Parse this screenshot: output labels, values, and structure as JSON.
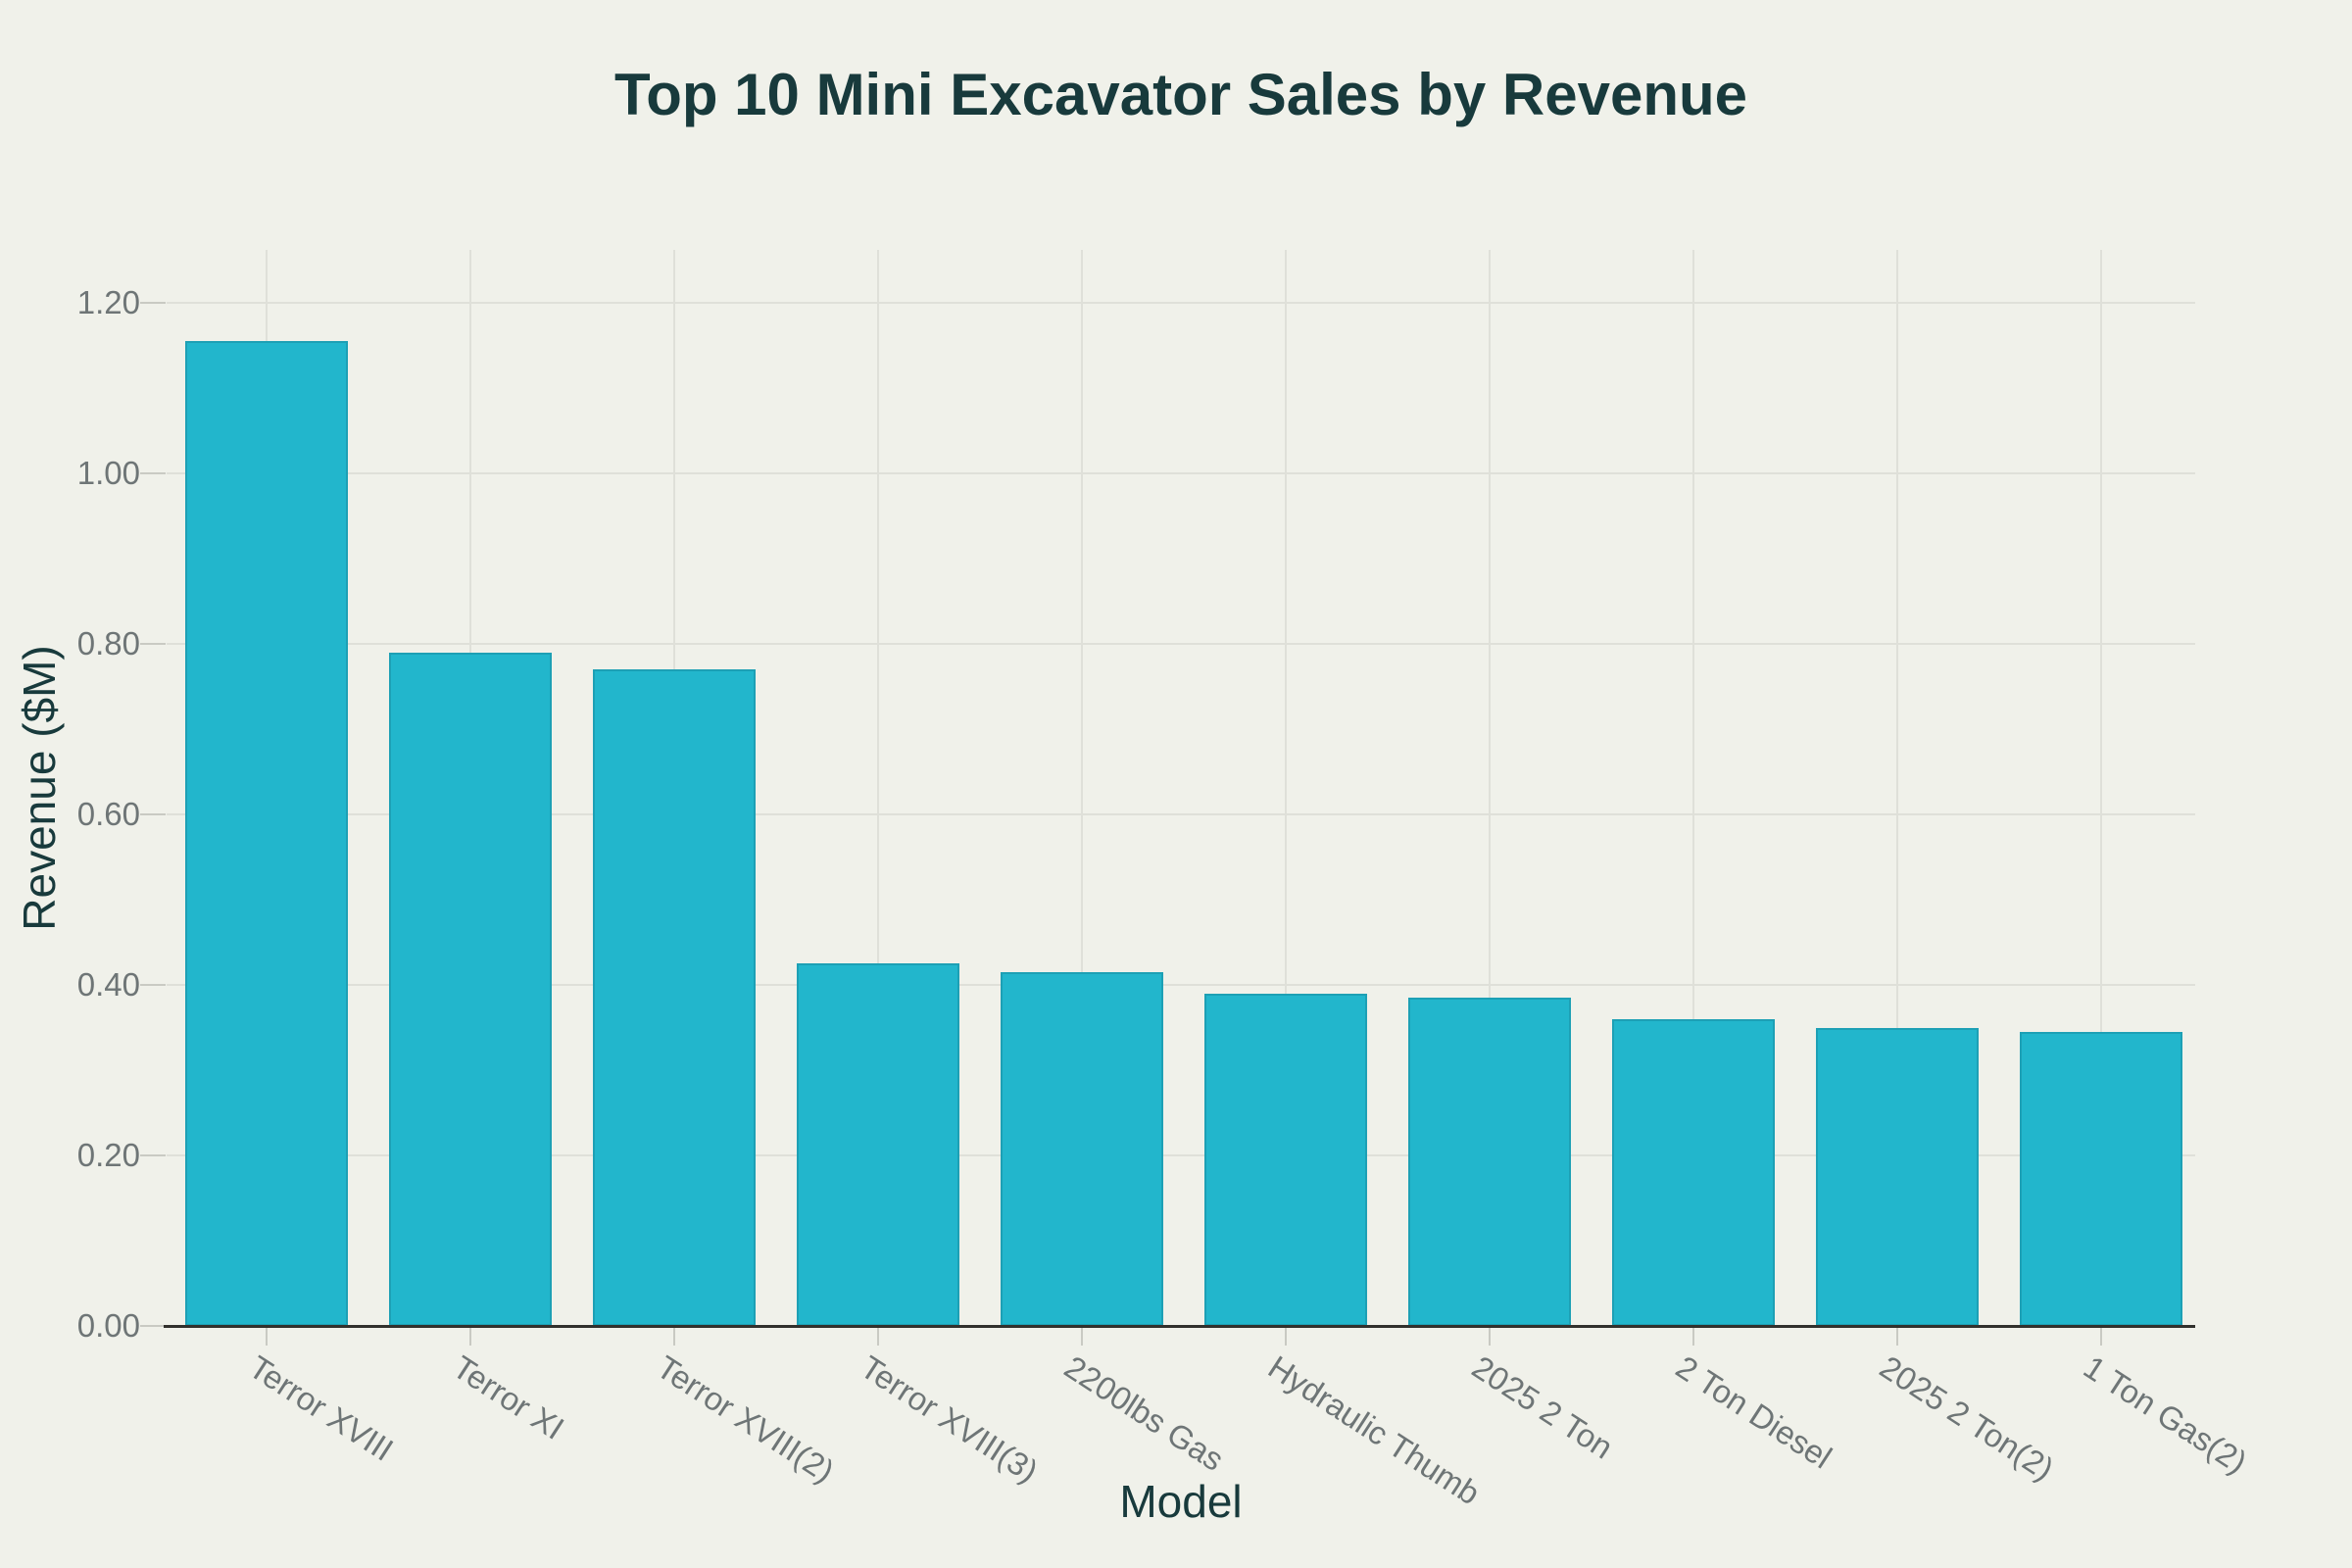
{
  "title": "Top 10 Mini Excavator Sales by Revenue",
  "chart_data": {
    "type": "bar",
    "title": "Top 10 Mini Excavator Sales by Revenue",
    "xlabel": "Model",
    "ylabel": "Revenue ($M)",
    "categories": [
      "Terror XVIII",
      "Terror XI",
      "Terror XVIII(2)",
      "Terror XVIII(3)",
      "2200lbs Gas",
      "Hydraulic Thumb",
      "2025 2 Ton",
      "2 Ton Diesel",
      "2025 2 Ton(2)",
      "1 Ton Gas(2)"
    ],
    "values": [
      1.155,
      0.79,
      0.77,
      0.425,
      0.415,
      0.39,
      0.385,
      0.36,
      0.35,
      0.345
    ],
    "ylim": [
      0,
      1.26
    ],
    "ytick_values": [
      0.0,
      0.2,
      0.4,
      0.6,
      0.8,
      1.0,
      1.2
    ],
    "ytick_labels": [
      "0.00",
      "0.20",
      "0.40",
      "0.60",
      "0.80",
      "1.00",
      "1.20"
    ],
    "grid": true,
    "legend_position": "none",
    "bar_color": "#22b6cc",
    "bar_edge_color": "#1a8ea0",
    "background_color": "#f0f1ea",
    "grid_color": "#dfe0d9",
    "axis_line_color": "#32312d",
    "tick_label_color": "#6e7576",
    "title_color": "#183a3c",
    "x_tick_label_angle_deg": 33
  }
}
